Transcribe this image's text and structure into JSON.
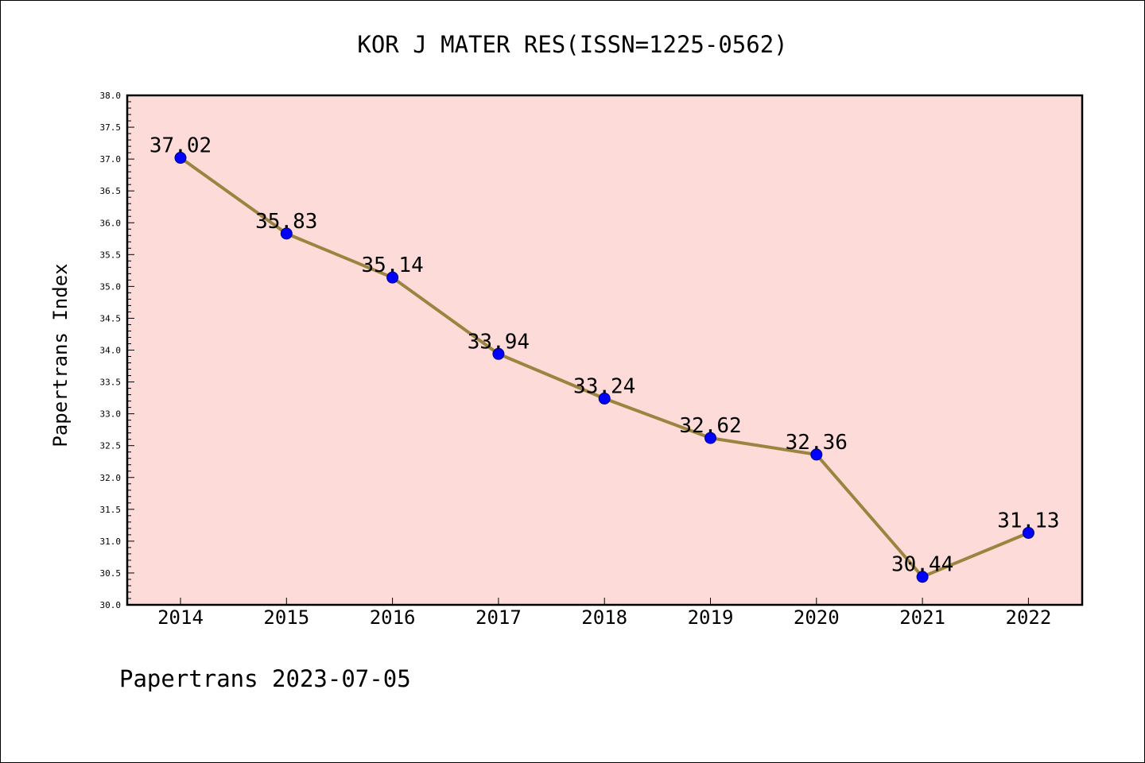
{
  "chart_data": {
    "type": "line",
    "title": "KOR J MATER RES(ISSN=1225-0562)",
    "xlabel": "",
    "ylabel": "Papertrans Index",
    "categories": [
      "2014",
      "2015",
      "2016",
      "2017",
      "2018",
      "2019",
      "2020",
      "2021",
      "2022"
    ],
    "series": [
      {
        "values": [
          37.02,
          35.83,
          35.14,
          33.94,
          33.24,
          32.62,
          32.36,
          30.44,
          31.13
        ]
      }
    ],
    "data_labels": [
      "37.02",
      "35.83",
      "35.14",
      "33.94",
      "33.24",
      "32.62",
      "32.36",
      "30.44",
      "31.13"
    ],
    "ylim": [
      30.0,
      38.0
    ],
    "y_tick_labels": [
      "30.0",
      "30.5",
      "31.0",
      "31.5",
      "32.0",
      "32.5",
      "33.0",
      "33.5",
      "34.0",
      "34.5",
      "35.0",
      "35.5",
      "36.0",
      "36.5",
      "37.0",
      "37.5",
      "38.0"
    ],
    "grid": false,
    "footer": "Papertrans 2023-07-05",
    "colors": {
      "plot_background": "#fddbd8",
      "line": "#9b8440",
      "marker": "#0000ff",
      "marker_edge": "#000080"
    }
  }
}
